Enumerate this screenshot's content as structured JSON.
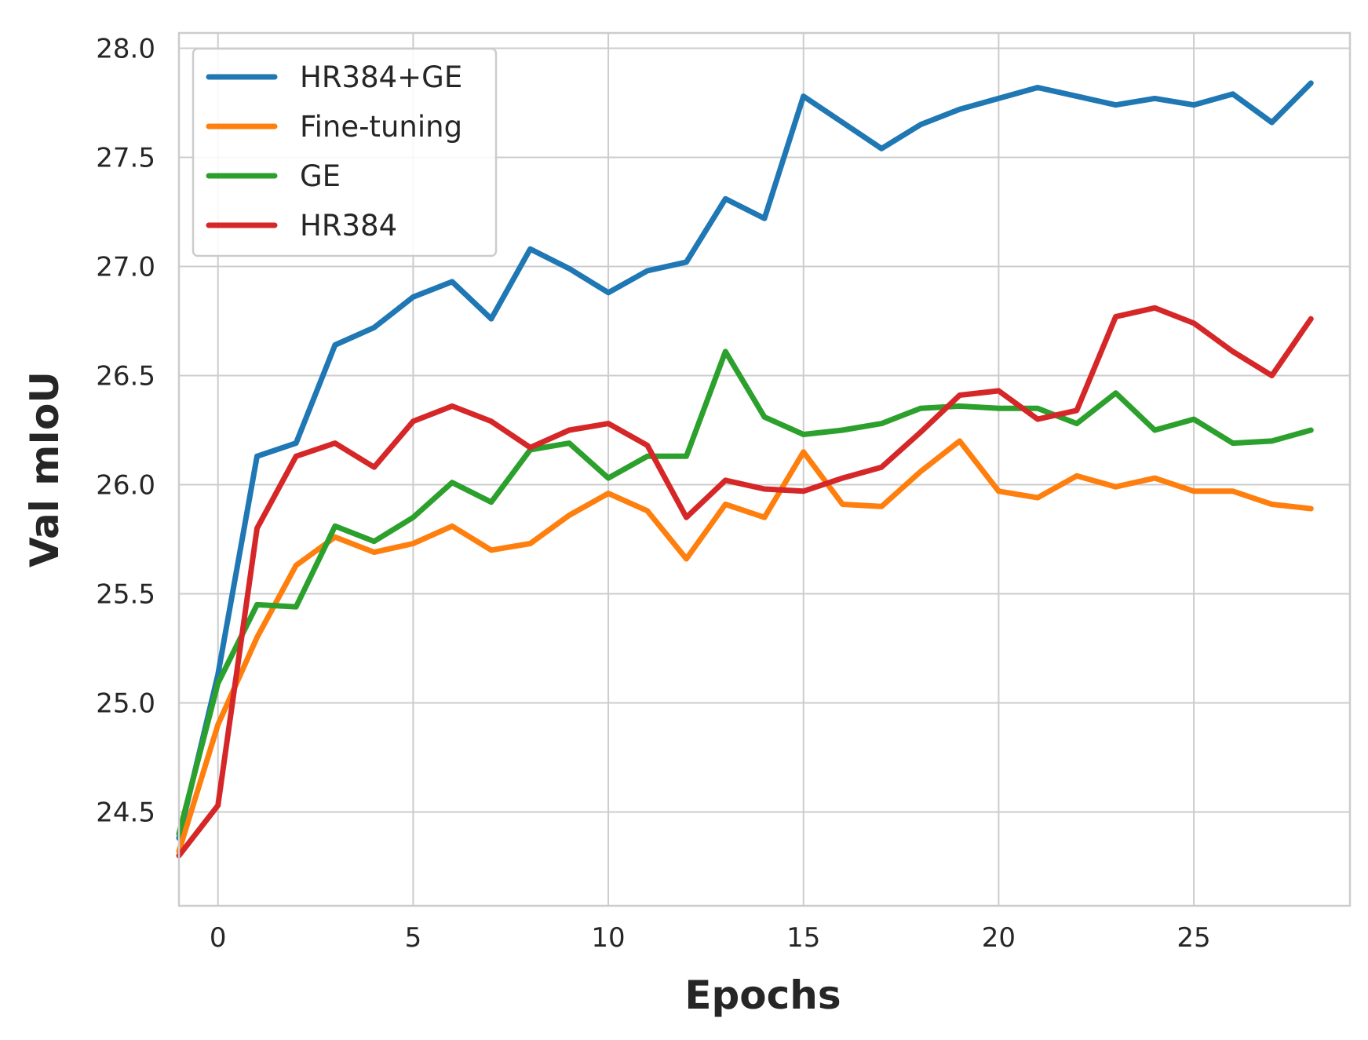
{
  "chart_data": {
    "type": "line",
    "title": "",
    "xlabel": "Epochs",
    "ylabel": "Val mIoU",
    "xlim": [
      -1,
      29
    ],
    "ylim": [
      24.07,
      28.07
    ],
    "x_ticks": [
      0,
      5,
      10,
      15,
      20,
      25
    ],
    "y_ticks": [
      24.5,
      25.0,
      25.5,
      26.0,
      26.5,
      27.0,
      27.5,
      28.0
    ],
    "grid": true,
    "legend_position": "upper-left",
    "x": [
      -1,
      0,
      1,
      2,
      3,
      4,
      5,
      6,
      7,
      8,
      9,
      10,
      11,
      12,
      13,
      14,
      15,
      16,
      17,
      18,
      19,
      20,
      21,
      22,
      23,
      24,
      25,
      26,
      27,
      28
    ],
    "series": [
      {
        "name": "HR384+GE",
        "color": "#1f77b4",
        "values": [
          24.38,
          25.13,
          26.13,
          26.19,
          26.64,
          26.72,
          26.86,
          26.93,
          26.76,
          27.08,
          26.99,
          26.88,
          26.98,
          27.02,
          27.31,
          27.22,
          27.78,
          27.66,
          27.54,
          27.65,
          27.72,
          27.77,
          27.82,
          27.78,
          27.74,
          27.77,
          27.74,
          27.79,
          27.66,
          27.84
        ]
      },
      {
        "name": "Fine-tuning",
        "color": "#ff7f0e",
        "values": [
          24.32,
          24.9,
          25.3,
          25.63,
          25.76,
          25.69,
          25.73,
          25.81,
          25.7,
          25.73,
          25.86,
          25.96,
          25.88,
          25.66,
          25.91,
          25.85,
          26.15,
          25.91,
          25.9,
          26.06,
          26.2,
          25.97,
          25.94,
          26.04,
          25.99,
          26.03,
          25.97,
          25.97,
          25.91,
          25.89
        ]
      },
      {
        "name": "GE",
        "color": "#2ca02c",
        "values": [
          24.4,
          25.09,
          25.45,
          25.44,
          25.81,
          25.74,
          25.85,
          26.01,
          25.92,
          26.16,
          26.19,
          26.03,
          26.13,
          26.13,
          26.61,
          26.31,
          26.23,
          26.25,
          26.28,
          26.35,
          26.36,
          26.35,
          26.35,
          26.28,
          26.42,
          26.25,
          26.3,
          26.19,
          26.2,
          26.25
        ]
      },
      {
        "name": "HR384",
        "color": "#d62728",
        "values": [
          24.3,
          24.53,
          25.8,
          26.13,
          26.19,
          26.08,
          26.29,
          26.36,
          26.29,
          26.17,
          26.25,
          26.28,
          26.18,
          25.85,
          26.02,
          25.98,
          25.97,
          26.03,
          26.08,
          26.24,
          26.41,
          26.43,
          26.3,
          26.34,
          26.77,
          26.81,
          26.74,
          26.61,
          26.5,
          26.76
        ]
      }
    ]
  }
}
